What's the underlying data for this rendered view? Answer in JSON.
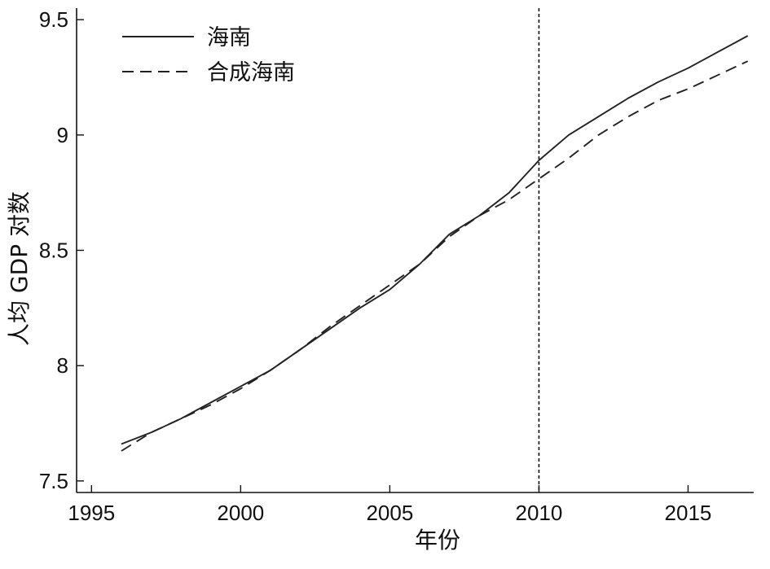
{
  "chart_data": {
    "type": "line",
    "xlabel": "年份",
    "ylabel": "人均 GDP 对数",
    "xlim": [
      1994.5,
      2017.2
    ],
    "ylim": [
      7.45,
      9.55
    ],
    "xticks": [
      1995,
      2000,
      2005,
      2010,
      2015
    ],
    "yticks": [
      7.5,
      8,
      8.5,
      9,
      9.5
    ],
    "ytick_labels": [
      "7.5",
      "8",
      "8.5",
      "9",
      "9.5"
    ],
    "grid": false,
    "legend": "top-left",
    "vline_x": 2010,
    "series": [
      {
        "name": "海南",
        "style": "solid",
        "x": [
          1996,
          1997,
          1998,
          1999,
          2000,
          2001,
          2002,
          2003,
          2004,
          2005,
          2006,
          2007,
          2008,
          2009,
          2010,
          2011,
          2012,
          2013,
          2014,
          2015,
          2016,
          2017
        ],
        "y": [
          7.66,
          7.71,
          7.77,
          7.84,
          7.91,
          7.98,
          8.07,
          8.16,
          8.25,
          8.33,
          8.44,
          8.57,
          8.65,
          8.75,
          8.89,
          9.0,
          9.08,
          9.16,
          9.23,
          9.29,
          9.36,
          9.43
        ]
      },
      {
        "name": "合成海南",
        "style": "dashed",
        "x": [
          1996,
          1997,
          1998,
          1999,
          2000,
          2001,
          2002,
          2003,
          2004,
          2005,
          2006,
          2007,
          2008,
          2009,
          2010,
          2011,
          2012,
          2013,
          2014,
          2015,
          2016,
          2017
        ],
        "y": [
          7.63,
          7.71,
          7.77,
          7.83,
          7.9,
          7.98,
          8.07,
          8.17,
          8.26,
          8.35,
          8.44,
          8.56,
          8.65,
          8.72,
          8.81,
          8.9,
          9.0,
          9.08,
          9.15,
          9.2,
          9.26,
          9.32
        ]
      }
    ]
  }
}
